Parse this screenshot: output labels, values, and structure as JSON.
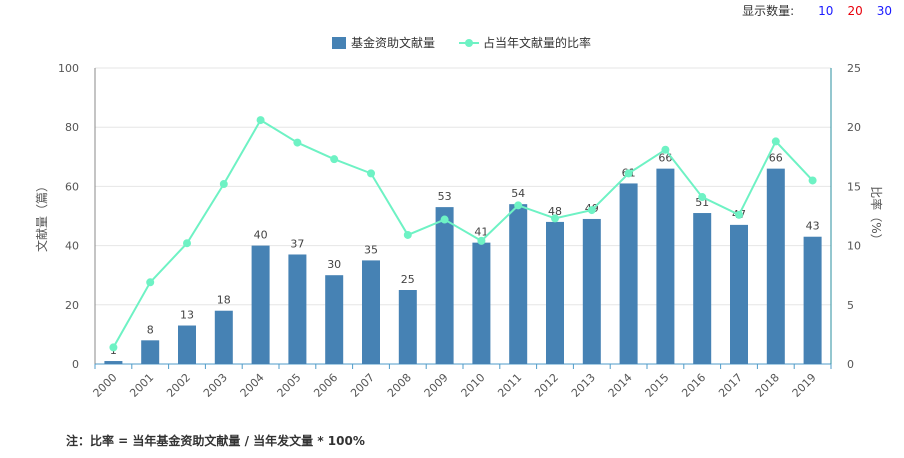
{
  "display_count": {
    "label": "显示数量:",
    "options": [
      {
        "value": "10",
        "color": "#1a1aff"
      },
      {
        "value": "20",
        "color": "#e8000b"
      },
      {
        "value": "30",
        "color": "#1a1aff"
      }
    ]
  },
  "note": "注：比率 = 当年基金资助文献量 / 当年发文量 * 100%",
  "colors": {
    "bar": "#4682b4",
    "line": "#6ef2c4"
  },
  "chart_data": {
    "type": "bar+line",
    "categories": [
      "2000",
      "2001",
      "2002",
      "2003",
      "2004",
      "2005",
      "2006",
      "2007",
      "2008",
      "2009",
      "2010",
      "2011",
      "2012",
      "2013",
      "2014",
      "2015",
      "2016",
      "2017",
      "2018",
      "2019"
    ],
    "series": [
      {
        "name": "基金资助文献量",
        "type": "bar",
        "axis": "left",
        "values": [
          1,
          8,
          13,
          18,
          40,
          37,
          30,
          35,
          25,
          53,
          41,
          54,
          48,
          49,
          61,
          66,
          51,
          47,
          66,
          43
        ]
      },
      {
        "name": "占当年文献量的比率",
        "type": "line",
        "axis": "right",
        "values": [
          1.4,
          6.9,
          10.2,
          15.2,
          20.6,
          18.7,
          17.3,
          16.1,
          10.9,
          12.2,
          10.4,
          13.4,
          12.3,
          13.0,
          16.1,
          18.1,
          14.1,
          12.6,
          18.8,
          15.5
        ]
      }
    ],
    "ylabel": "文献量（篇）",
    "y2label": "比率（%）",
    "ylim": [
      0,
      100
    ],
    "y2lim": [
      0,
      25
    ],
    "yticks": [
      0,
      20,
      40,
      60,
      80,
      100
    ],
    "y2ticks": [
      0,
      5,
      10,
      15,
      20,
      25
    ],
    "grid": true,
    "legend": "top-center"
  }
}
